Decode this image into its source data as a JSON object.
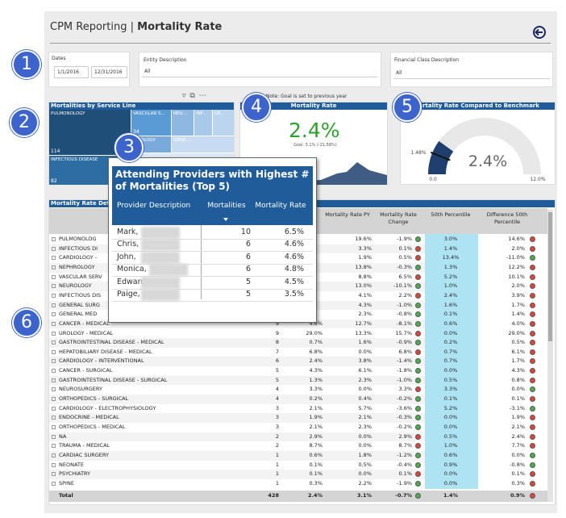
{
  "header": {
    "prefix": "CPM Reporting",
    "separator": "|",
    "title": "Mortality Rate"
  },
  "badges": [
    "1",
    "2",
    "3",
    "4",
    "5",
    "6"
  ],
  "filters": {
    "dates": {
      "label": "Dates",
      "start": "1/1/2016",
      "end": "12/31/2016"
    },
    "entity": {
      "label": "Entity Description",
      "value": "All"
    },
    "financial": {
      "label": "Financial Class Description",
      "value": "All"
    }
  },
  "treemap": {
    "title": "Mortalities by Service Line",
    "cells": [
      {
        "label": "PULMONOLOGY",
        "value": 114
      },
      {
        "label": "INFECTIOUS DISEASE",
        "value": 82
      },
      {
        "label": "VASCULAR S...",
        "value": 34
      },
      {
        "label": "NEU...",
        "value": null
      },
      {
        "label": "INF...",
        "value": null
      },
      {
        "label": "GE...",
        "value": null
      },
      {
        "label": "...ROLOGY",
        "value": null
      },
      {
        "label": "GENE...",
        "value": null
      }
    ]
  },
  "note": "Note: Goal is set to previous year",
  "kpi": {
    "title": "Mortality Rate",
    "value": "2.4%",
    "goal": "Goal: 3.1% (-21.58%)"
  },
  "gauge": {
    "title": "...rtality Rate Compared to Benchmark",
    "min": 0,
    "max": 12,
    "value": 2.4,
    "target": 1.48,
    "min_label": "0.0",
    "max_label": "12.0%",
    "value_label": "2.4%",
    "target_label": "1.48%"
  },
  "popup": {
    "title": "Attending Providers with Highest # of Mortalities (Top 5)",
    "columns": [
      "Provider Description",
      "Mortalities",
      "Mortality Rate"
    ],
    "rows": [
      [
        "Mark,",
        10,
        "6.5%"
      ],
      [
        "Chris,",
        6,
        "4.6%"
      ],
      [
        "John,",
        6,
        "4.6%"
      ],
      [
        "Monica,",
        6,
        "4.8%"
      ],
      [
        "Edward,",
        5,
        "4.5%"
      ],
      [
        "Paige,",
        5,
        "3.5%"
      ]
    ]
  },
  "table": {
    "title": "Mortality Rate Deta",
    "columns": [
      "Mortality Rate PY",
      "Mortality Rate Change",
      "50th Percentile",
      "Difference 50th Percentile"
    ],
    "rows": [
      [
        "PULMONOLOG",
        null,
        null,
        "19.6%",
        "-1.9%",
        "3.0%",
        "14.6%"
      ],
      [
        "INFECTIOUS DI",
        null,
        null,
        "3.3%",
        "0.1%",
        "1.4%",
        "2.0%"
      ],
      [
        "CARDIOLOGY -",
        null,
        null,
        "1.9%",
        "0.5%",
        "13.4%",
        "-11.0%"
      ],
      [
        "NEPHROLOGY",
        null,
        null,
        "13.8%",
        "-0.3%",
        "1.3%",
        "12.2%"
      ],
      [
        "VASCULAR SERV",
        null,
        null,
        "8.8%",
        "6.5%",
        "5.2%",
        "10.1%"
      ],
      [
        "NEUROLOGY",
        null,
        null,
        "13.0%",
        "-10.1%",
        "1.0%",
        "2.0%"
      ],
      [
        "INFECTIOUS DIS",
        null,
        null,
        "4.1%",
        "2.2%",
        "2.4%",
        "3.9%"
      ],
      [
        "GENERAL SURG",
        null,
        null,
        "4.3%",
        "-1.0%",
        "1.6%",
        "1.7%"
      ],
      [
        "GENERAL MED",
        null,
        null,
        "2.3%",
        "-0.8%",
        "0.1%",
        "1.4%"
      ],
      [
        "CANCER - MEDICAL",
        9,
        "4.6%",
        "12.7%",
        "-8.1%",
        "0.6%",
        "4.0%"
      ],
      [
        "UROLOGY - MEDICAL",
        9,
        "29.0%",
        "13.3%",
        "15.7%",
        "0.0%",
        "29.0%"
      ],
      [
        "GASTROINTESTINAL DISEASE - MEDICAL",
        8,
        "0.7%",
        "1.6%",
        "-0.9%",
        "0.2%",
        "0.5%"
      ],
      [
        "HEPATOBILIARY DISEASE - MEDICAL",
        7,
        "6.8%",
        "0.0%",
        "6.8%",
        "0.7%",
        "6.1%"
      ],
      [
        "CARDIOLOGY - INTERVENTIONAL",
        6,
        "2.4%",
        "3.8%",
        "-1.4%",
        "0.7%",
        "1.7%"
      ],
      [
        "CANCER - SURGICAL",
        5,
        "4.3%",
        "6.1%",
        "-1.8%",
        "0.0%",
        "4.3%"
      ],
      [
        "GASTROINTESTINAL DISEASE - SURGICAL",
        5,
        "1.3%",
        "2.3%",
        "-1.0%",
        "0.5%",
        "0.8%"
      ],
      [
        "NEUROSURGERY",
        4,
        "3.3%",
        "0.0%",
        "3.3%",
        "3.3%",
        "0.0%"
      ],
      [
        "ORTHOPEDICS - SURGICAL",
        4,
        "0.2%",
        "0.4%",
        "-0.2%",
        "0.1%",
        "0.1%"
      ],
      [
        "CARDIOLOGY - ELECTROPHYSIOLOGY",
        3,
        "2.1%",
        "5.7%",
        "-3.6%",
        "5.2%",
        "-3.1%"
      ],
      [
        "ENDOCRINE - MEDICAL",
        3,
        "1.9%",
        "2.1%",
        "-0.3%",
        "0.0%",
        "1.9%"
      ],
      [
        "ORTHOPEDICS - MEDICAL",
        3,
        "2.1%",
        "2.3%",
        "-0.2%",
        "0.0%",
        "2.1%"
      ],
      [
        "NA",
        2,
        "2.9%",
        "0.0%",
        "2.9%",
        "0.5%",
        "2.4%"
      ],
      [
        "TRAUMA - MEDICAL",
        2,
        "8.7%",
        "0.0%",
        "8.7%",
        "1.0%",
        "7.7%"
      ],
      [
        "CARDIAC SURGERY",
        1,
        "0.6%",
        "1.8%",
        "-1.2%",
        "0.6%",
        "0.0%"
      ],
      [
        "NEONATE",
        1,
        "0.1%",
        "0.5%",
        "-0.4%",
        "0.9%",
        "-0.8%"
      ],
      [
        "PSYCHIATRY",
        1,
        "0.1%",
        "0.0%",
        "0.1%",
        "0.0%",
        "0.1%"
      ],
      [
        "SPINE",
        1,
        "0.3%",
        "2.2%",
        "-1.9%",
        "0.0%",
        "0.3%"
      ]
    ],
    "total": [
      "Total",
      428,
      "2.4%",
      "3.1%",
      "-0.7%",
      "1.4%",
      "0.9%"
    ]
  }
}
